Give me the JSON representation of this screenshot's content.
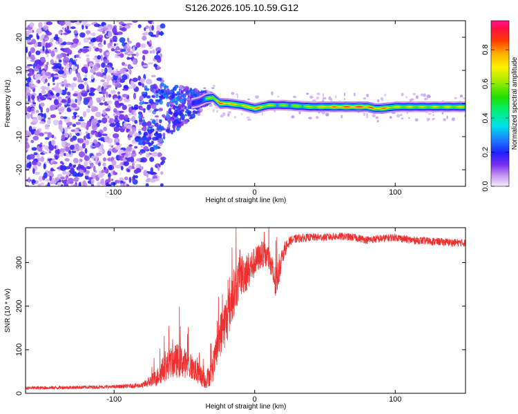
{
  "title": "S126.2026.105.10.59.G12",
  "chart_data": [
    {
      "type": "heatmap",
      "xlabel": "Height of straight line (km)",
      "ylabel": "Frequency (Hz)",
      "xlim": [
        -163,
        150
      ],
      "ylim": [
        -25,
        25
      ],
      "x_ticks": [
        -100,
        0,
        100
      ],
      "y_ticks": [
        -20,
        -10,
        0,
        10,
        20
      ],
      "colorbar": {
        "label": "Normalized spectral amplitude",
        "range": [
          0,
          0.97
        ],
        "ticks": [
          0.0,
          0.2,
          0.4,
          0.6,
          0.8
        ]
      },
      "ridge": {
        "x": [
          -80,
          -70,
          -60,
          -50,
          -45,
          -40,
          -35,
          -30,
          -25,
          -20,
          -10,
          0,
          10,
          20,
          40,
          60,
          80,
          85,
          90,
          100,
          120,
          150
        ],
        "frequency": [
          -6,
          -4,
          -2,
          -0.5,
          0,
          0.5,
          1.5,
          1.8,
          0,
          0,
          -0.5,
          -1.5,
          -0.5,
          -0.5,
          -1,
          -1,
          -1,
          -1.5,
          -1.5,
          -1,
          -1,
          -1
        ],
        "amplitude": [
          0.15,
          0.2,
          0.25,
          0.3,
          0.35,
          0.45,
          0.6,
          0.75,
          0.9,
          0.85,
          0.75,
          0.9,
          0.7,
          0.65,
          0.7,
          0.9,
          0.95,
          0.85,
          0.9,
          0.75,
          0.7,
          0.75
        ]
      },
      "noise_region_x": [
        -163,
        -75
      ]
    },
    {
      "type": "line",
      "xlabel": "Height of straight line (km)",
      "ylabel": "SNR (10 * v/v)",
      "xlim": [
        -163,
        150
      ],
      "ylim": [
        0,
        380
      ],
      "x_ticks": [
        -100,
        0,
        100
      ],
      "y_ticks": [
        0,
        100,
        200,
        300
      ],
      "color": "#ee3030",
      "series": [
        {
          "name": "SNR",
          "x": [
            -163,
            -140,
            -120,
            -100,
            -80,
            -70,
            -65,
            -60,
            -55,
            -50,
            -45,
            -40,
            -35,
            -30,
            -25,
            -20,
            -15,
            -10,
            -5,
            0,
            5,
            10,
            15,
            20,
            25,
            30,
            40,
            50,
            60,
            70,
            80,
            90,
            100,
            110,
            120,
            130,
            140,
            150
          ],
          "values": [
            12,
            13,
            14,
            15,
            18,
            35,
            55,
            70,
            75,
            70,
            60,
            45,
            30,
            50,
            130,
            170,
            230,
            270,
            280,
            300,
            320,
            310,
            250,
            320,
            350,
            355,
            358,
            358,
            360,
            358,
            352,
            355,
            358,
            352,
            350,
            348,
            346,
            345
          ],
          "spread": [
            4,
            4,
            4,
            4,
            6,
            20,
            30,
            35,
            40,
            35,
            30,
            25,
            20,
            30,
            50,
            60,
            55,
            50,
            45,
            35,
            30,
            30,
            40,
            20,
            10,
            10,
            9,
            9,
            9,
            9,
            9,
            9,
            9,
            9,
            9,
            9,
            9,
            9
          ]
        }
      ]
    }
  ]
}
